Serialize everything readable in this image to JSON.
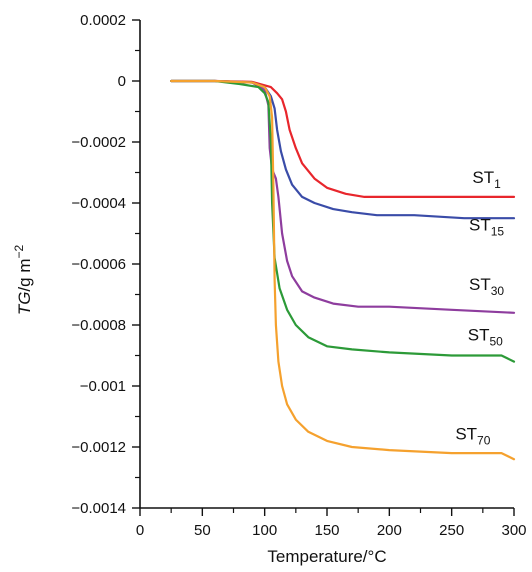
{
  "chart_data": {
    "type": "line",
    "xlabel": "Temperature/°C",
    "ylabel": {
      "italic": "TG",
      "rest": "/g m",
      "sup": "−2"
    },
    "xlim": [
      0,
      300
    ],
    "ylim": [
      -0.0014,
      0.0002
    ],
    "x_ticks": [
      0,
      50,
      100,
      150,
      200,
      250,
      300
    ],
    "x_tick_labels": [
      "0",
      "50",
      "100",
      "150",
      "200",
      "250",
      "300"
    ],
    "y_ticks": [
      0.0002,
      0,
      -0.0002,
      -0.0004,
      -0.0006,
      -0.0008,
      -0.001,
      -0.0012,
      -0.0014
    ],
    "y_tick_labels": [
      "0.0002",
      "0",
      "−0.0002",
      "−0.0004",
      "−0.0006",
      "−0.0008",
      "−0.001",
      "−0.0012",
      "−0.0014"
    ],
    "grid": false,
    "series": [
      {
        "name": "ST1",
        "label_main": "ST",
        "label_sub": "1",
        "color": "#e8262c",
        "x": [
          25,
          60,
          90,
          105,
          110,
          114,
          117,
          120,
          125,
          130,
          140,
          150,
          165,
          180,
          200,
          230,
          260,
          300
        ],
        "y": [
          0,
          0,
          -3e-06,
          -2e-05,
          -4e-05,
          -6e-05,
          -0.0001,
          -0.00016,
          -0.00022,
          -0.00027,
          -0.00032,
          -0.00035,
          -0.00037,
          -0.00038,
          -0.00038,
          -0.00038,
          -0.00038,
          -0.00038
        ]
      },
      {
        "name": "ST15",
        "label_main": "ST",
        "label_sub": "15",
        "color": "#3a4ca8",
        "x": [
          25,
          60,
          90,
          100,
          105,
          108,
          110,
          113,
          117,
          122,
          130,
          140,
          155,
          170,
          190,
          220,
          260,
          300
        ],
        "y": [
          0,
          0,
          -5e-06,
          -2e-05,
          -5e-05,
          -9e-05,
          -0.00016,
          -0.00023,
          -0.00029,
          -0.00034,
          -0.00038,
          -0.0004,
          -0.00042,
          -0.00043,
          -0.00044,
          -0.00044,
          -0.00045,
          -0.00045
        ]
      },
      {
        "name": "ST30",
        "label_main": "ST",
        "label_sub": "30",
        "color": "#8e3d9e",
        "x": [
          25,
          60,
          90,
          100,
          103,
          104,
          106,
          109,
          111,
          114,
          118,
          122,
          130,
          140,
          155,
          175,
          200,
          250,
          300
        ],
        "y": [
          0,
          0,
          -5e-06,
          -3e-05,
          -8e-05,
          -0.00022,
          -0.00029,
          -0.00032,
          -0.00038,
          -0.0005,
          -0.00059,
          -0.00064,
          -0.00069,
          -0.00071,
          -0.00073,
          -0.00074,
          -0.00074,
          -0.00075,
          -0.00076
        ]
      },
      {
        "name": "ST50",
        "label_main": "ST",
        "label_sub": "50",
        "color": "#2c9a38",
        "x": [
          25,
          60,
          80,
          95,
          100,
          103,
          105,
          106,
          108,
          112,
          118,
          125,
          135,
          150,
          170,
          200,
          250,
          290,
          300
        ],
        "y": [
          0,
          0,
          -1e-05,
          -2e-05,
          -4e-05,
          -7e-05,
          -0.0002,
          -0.0004,
          -0.00058,
          -0.00068,
          -0.00075,
          -0.0008,
          -0.00084,
          -0.00087,
          -0.00088,
          -0.00089,
          -0.0009,
          -0.0009,
          -0.00092
        ]
      },
      {
        "name": "ST70",
        "label_main": "ST",
        "label_sub": "70",
        "color": "#f5a12e",
        "x": [
          25,
          60,
          90,
          100,
          104,
          106,
          107,
          108,
          109,
          111,
          114,
          118,
          125,
          135,
          150,
          170,
          200,
          250,
          290,
          300
        ],
        "y": [
          0,
          0,
          -5e-06,
          -2e-05,
          -5e-05,
          -0.00012,
          -0.00035,
          -0.00065,
          -0.0008,
          -0.00092,
          -0.001,
          -0.00106,
          -0.00111,
          -0.00115,
          -0.00118,
          -0.0012,
          -0.00121,
          -0.00122,
          -0.00122,
          -0.00124
        ]
      }
    ]
  }
}
